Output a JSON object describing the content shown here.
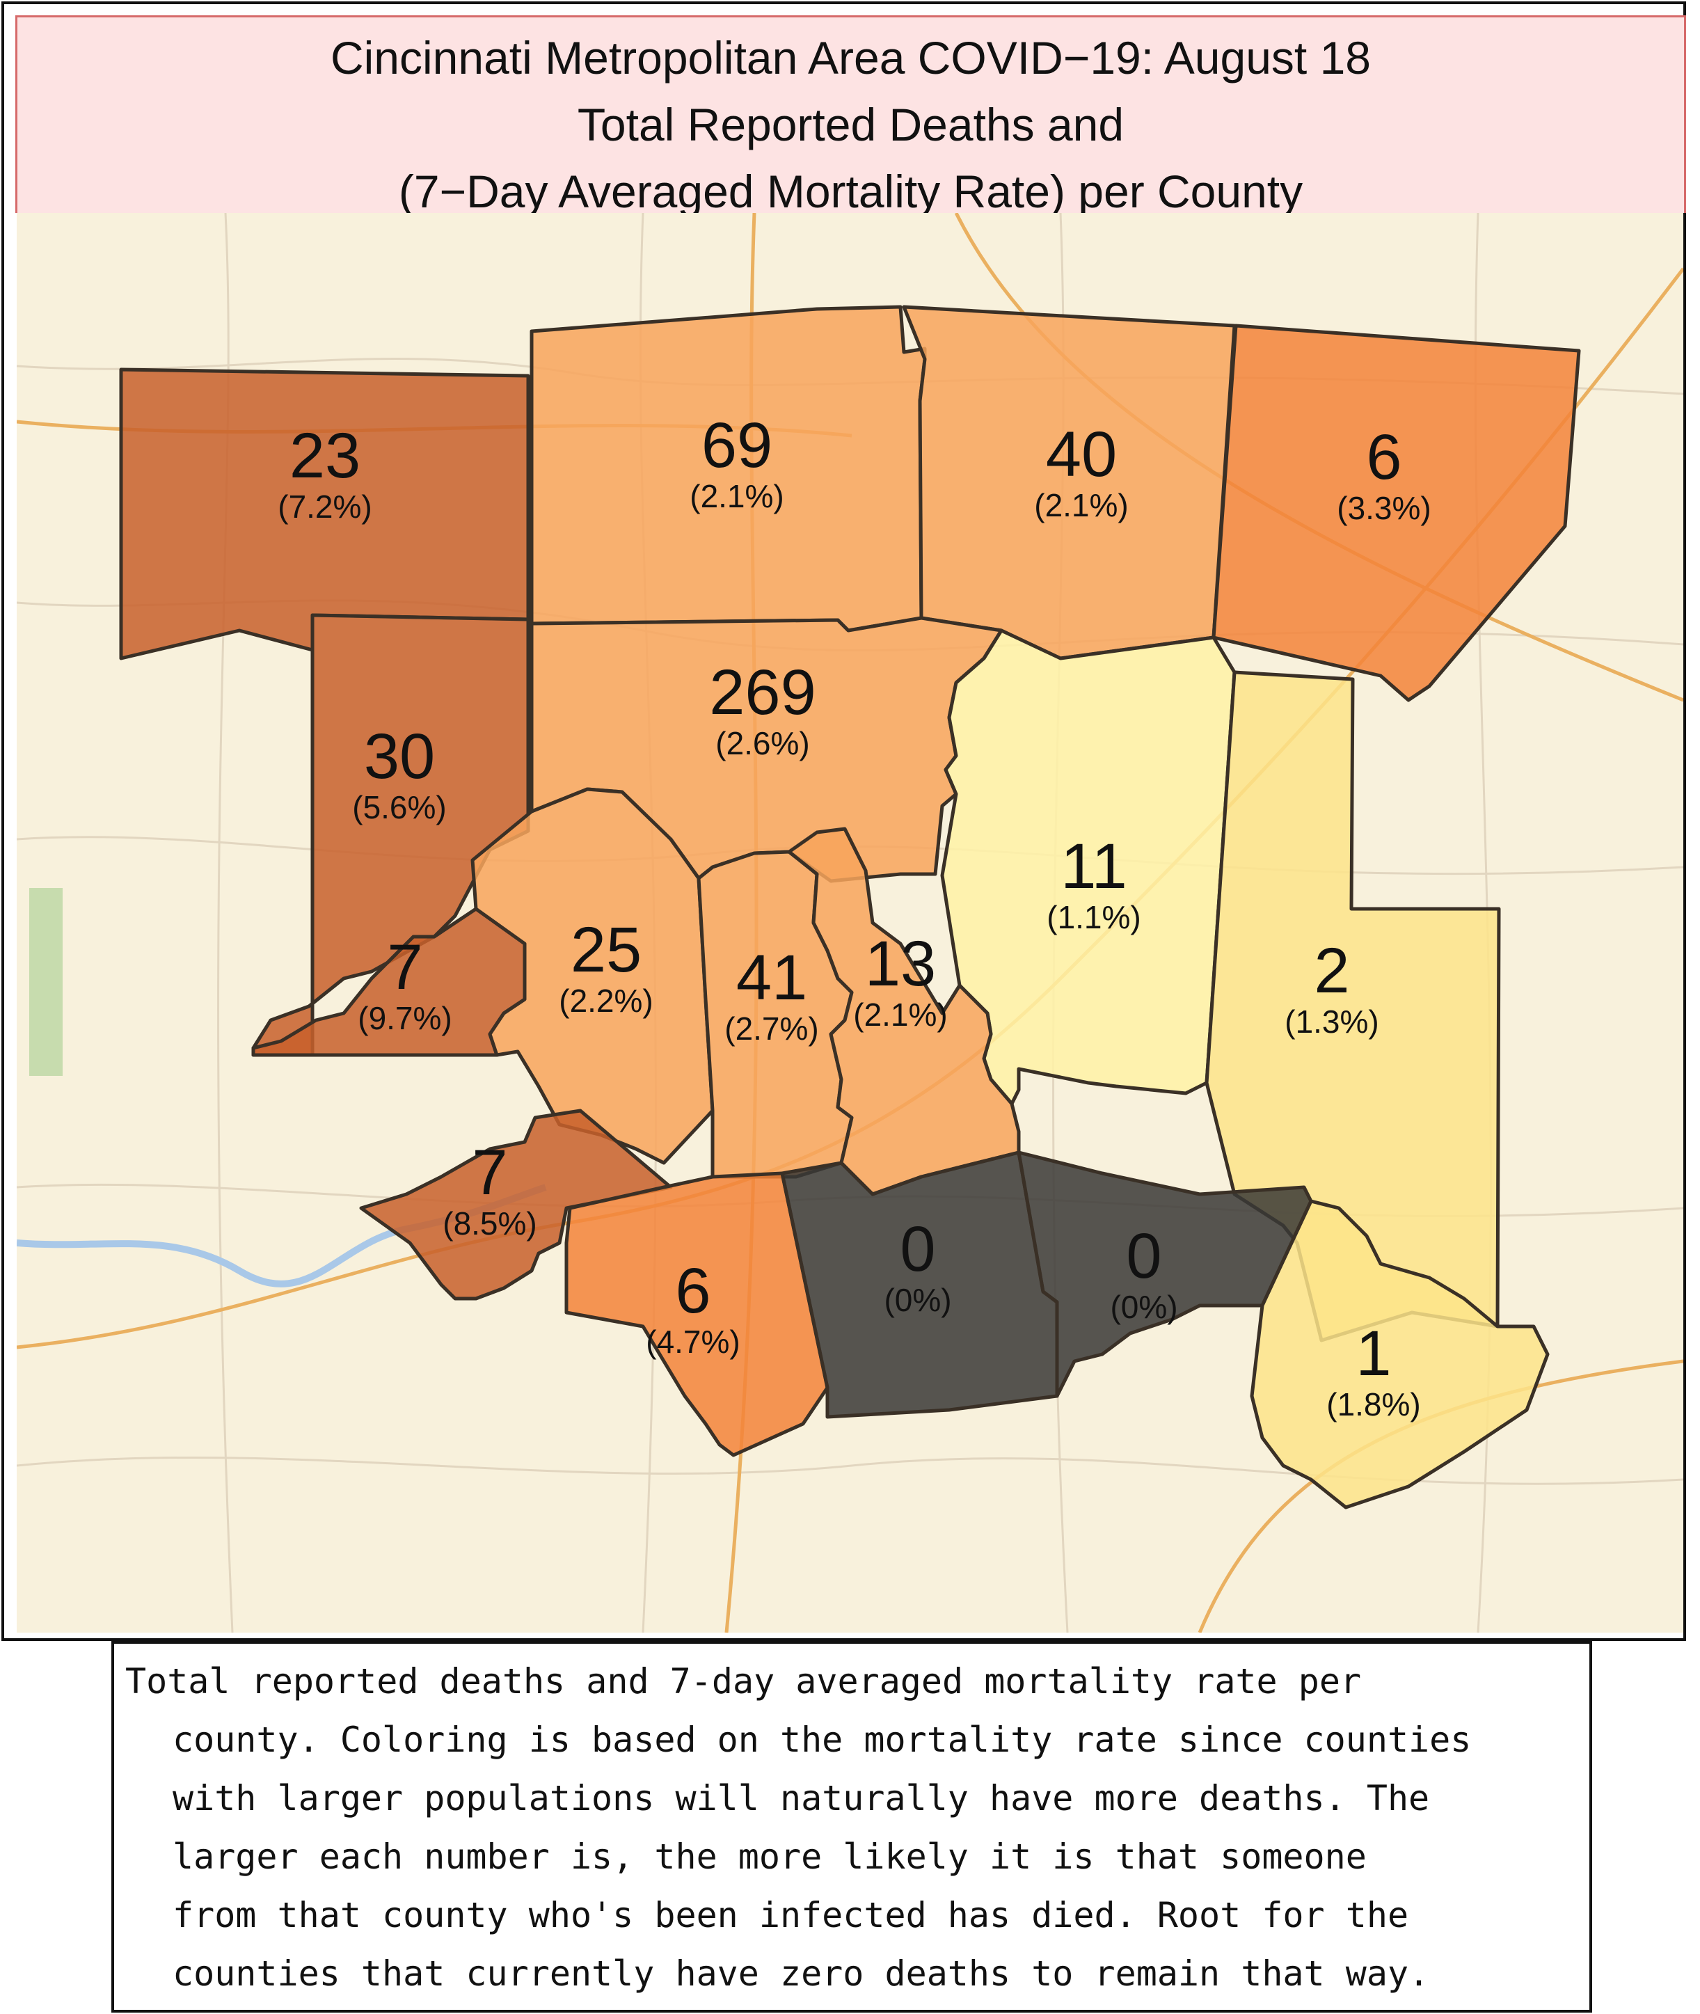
{
  "title": {
    "line1": "Cincinnati Metropolitan Area COVID−19: August 18",
    "line2": "Total Reported Deaths and",
    "line3": "(7−Day Averaged Mortality Rate) per County"
  },
  "counties": [
    {
      "id": "nw-top",
      "deaths": "23",
      "rate": "(7.2%)",
      "color": "#c8602c"
    },
    {
      "id": "north-1",
      "deaths": "69",
      "rate": "(2.1%)",
      "color": "#f8a55c"
    },
    {
      "id": "north-2",
      "deaths": "40",
      "rate": "(2.1%)",
      "color": "#f8a55c"
    },
    {
      "id": "ne-top",
      "deaths": "6",
      "rate": "(3.3%)",
      "color": "#f3843a"
    },
    {
      "id": "west-mid",
      "deaths": "30",
      "rate": "(5.6%)",
      "color": "#c8602c"
    },
    {
      "id": "central-large",
      "deaths": "269",
      "rate": "(2.6%)",
      "color": "#f8a55c"
    },
    {
      "id": "east-1",
      "deaths": "11",
      "rate": "(1.1%)",
      "color": "#fff2a6"
    },
    {
      "id": "east-2",
      "deaths": "2",
      "rate": "(1.3%)",
      "color": "#fde48a"
    },
    {
      "id": "sw-small",
      "deaths": "7",
      "rate": "(9.7%)",
      "color": "#c8602c"
    },
    {
      "id": "south-1",
      "deaths": "25",
      "rate": "(2.2%)",
      "color": "#f8a55c"
    },
    {
      "id": "south-2",
      "deaths": "41",
      "rate": "(2.7%)",
      "color": "#f8a55c"
    },
    {
      "id": "south-3",
      "deaths": "13",
      "rate": "(2.1%)",
      "color": "#f8a55c"
    },
    {
      "id": "sw-lower",
      "deaths": "7",
      "rate": "(8.5%)",
      "color": "#c8602c"
    },
    {
      "id": "south-orange",
      "deaths": "6",
      "rate": "(4.7%)",
      "color": "#f3843a"
    },
    {
      "id": "south-dark-1",
      "deaths": "0",
      "rate": "(0%)",
      "color": "#3a3836"
    },
    {
      "id": "south-dark-2",
      "deaths": "0",
      "rate": "(0%)",
      "color": "#3a3836"
    },
    {
      "id": "se-corner",
      "deaths": "1",
      "rate": "(1.8%)",
      "color": "#fde48a"
    }
  ],
  "caption": {
    "line1": "Total reported deaths and 7-day averaged mortality rate per",
    "line2": "county. Coloring is based on the mortality rate since counties",
    "line3": "with larger populations will naturally have more deaths. The",
    "line4": "larger each number is, the more likely it is that someone",
    "line5": "from that county who's been infected has died. Root for the",
    "line6": "counties that currently have zero deaths to remain that way."
  }
}
